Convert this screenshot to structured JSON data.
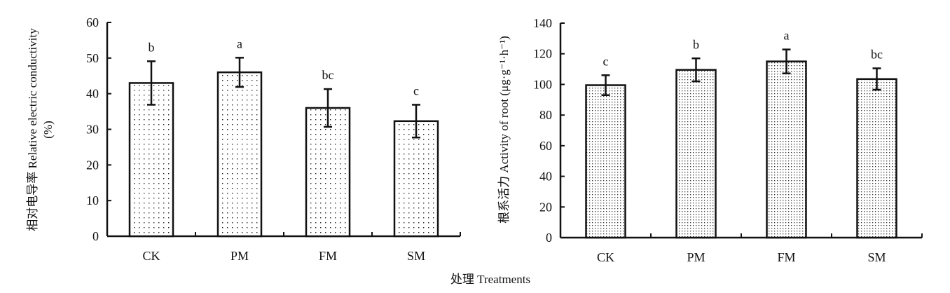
{
  "shared_xlabel": "处理 Treatments",
  "chart_data": [
    {
      "type": "bar",
      "categories": [
        "CK",
        "PM",
        "FM",
        "SM"
      ],
      "values": [
        43.0,
        46.0,
        36.0,
        32.3
      ],
      "errors": [
        6.1,
        4.1,
        5.3,
        4.6
      ],
      "significance_letters": [
        "b",
        "a",
        "bc",
        "c"
      ],
      "ylabel_cn": "相对电导率",
      "ylabel_en": "Relative electric conductivity",
      "ylabel_unit": "(%)",
      "ylim": [
        0,
        60
      ],
      "yticks": [
        0,
        10,
        20,
        30,
        40,
        50,
        60
      ],
      "pattern": "sparse-dots"
    },
    {
      "type": "bar",
      "categories": [
        "CK",
        "PM",
        "FM",
        "SM"
      ],
      "values": [
        99.5,
        109.5,
        115.0,
        103.5
      ],
      "errors": [
        6.5,
        7.5,
        7.8,
        7.0
      ],
      "significance_letters": [
        "c",
        "b",
        "a",
        "bc"
      ],
      "ylabel_cn": "根系活力",
      "ylabel_en": "Activity of root (μg·g⁻¹·h⁻¹)",
      "ylim": [
        0,
        140
      ],
      "yticks": [
        0,
        20,
        40,
        60,
        80,
        100,
        120,
        140
      ],
      "pattern": "dense-dots"
    }
  ]
}
